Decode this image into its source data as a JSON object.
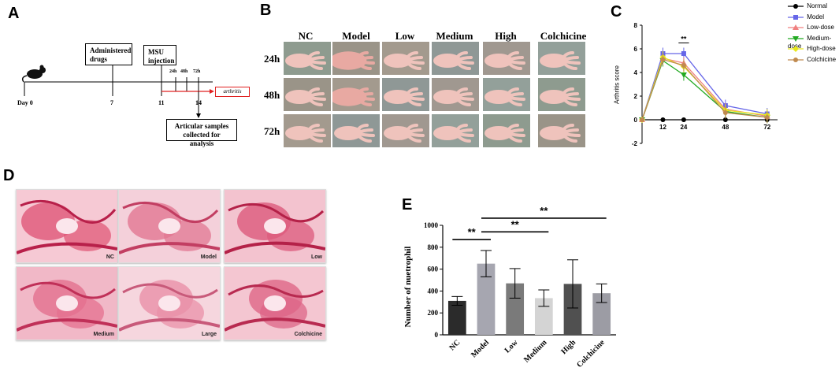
{
  "panels": {
    "a": "A",
    "b": "B",
    "c": "C",
    "d": "D",
    "e": "E"
  },
  "panel_a": {
    "box_drugs": "Administered drugs",
    "box_msu": "MSU injection",
    "box_articular": "Articular samples collected for analysis",
    "arthritis_tag": "arthritis",
    "days": [
      "Day 0",
      "7",
      "11",
      "14"
    ],
    "hours": [
      "24h",
      "48h",
      "72h"
    ],
    "mouse_icon": "mouse-icon"
  },
  "panel_b": {
    "columns": [
      "NC",
      "Model",
      "Low",
      "Medium",
      "High",
      "Colchicine"
    ],
    "rows": [
      "24h",
      "48h",
      "72h"
    ]
  },
  "panel_c": {
    "chart_data": {
      "type": "line",
      "ylabel": "Arthritis score",
      "xlabel": "",
      "x": [
        0,
        12,
        24,
        48,
        72
      ],
      "x_tick_labels": [
        "12",
        "24",
        "48",
        "72"
      ],
      "ylim": [
        -2,
        8
      ],
      "y_ticks": [
        "8",
        "6",
        "4",
        "2",
        "0",
        "-2"
      ],
      "significance": "**",
      "legend_position": "right",
      "series": [
        {
          "name": "Normal",
          "color": "#000000",
          "marker": "circle",
          "values": [
            0,
            0,
            0,
            0,
            0
          ]
        },
        {
          "name": "Model",
          "color": "#6666e8",
          "marker": "square",
          "values": [
            0,
            5.6,
            5.6,
            1.2,
            0.5
          ]
        },
        {
          "name": "Low-dose",
          "color": "#f08080",
          "marker": "triangle-up",
          "values": [
            0,
            5.2,
            4.8,
            0.9,
            0.3
          ]
        },
        {
          "name": "Medium-dose",
          "color": "#22aa22",
          "marker": "triangle-down",
          "values": [
            0,
            5.0,
            3.8,
            0.7,
            0.2
          ]
        },
        {
          "name": "High-dose",
          "color": "#e8e81a",
          "marker": "diamond",
          "values": [
            0,
            5.3,
            4.5,
            0.8,
            0.4
          ]
        },
        {
          "name": "Colchicine",
          "color": "#c08a50",
          "marker": "circle",
          "values": [
            0,
            5.1,
            4.6,
            0.6,
            0.2
          ]
        }
      ]
    }
  },
  "panel_d": {
    "labels": [
      "NC",
      "Model",
      "Low",
      "Medium",
      "Large",
      "Colchicine"
    ]
  },
  "panel_e": {
    "chart_data": {
      "type": "bar",
      "categories": [
        "NC",
        "Model",
        "Low",
        "Medium",
        "High",
        "Colchicine"
      ],
      "values": [
        310,
        650,
        470,
        335,
        465,
        380
      ],
      "errors": [
        40,
        120,
        135,
        75,
        220,
        85
      ],
      "colors": [
        "#2b2b2b",
        "#a6a6b0",
        "#7a7a7a",
        "#d4d4d4",
        "#505050",
        "#9c9ca4"
      ],
      "ylabel": "Number of nuetrophil",
      "xlabel": "",
      "ylim": [
        0,
        1000
      ],
      "y_ticks": [
        "1000",
        "800",
        "600",
        "400",
        "200",
        "0"
      ],
      "significance": [
        {
          "from": "NC",
          "to": "Model",
          "label": "**"
        },
        {
          "from": "Model",
          "to": "Medium",
          "label": "**"
        },
        {
          "from": "Model",
          "to": "Colchicine",
          "label": "**"
        }
      ]
    }
  }
}
